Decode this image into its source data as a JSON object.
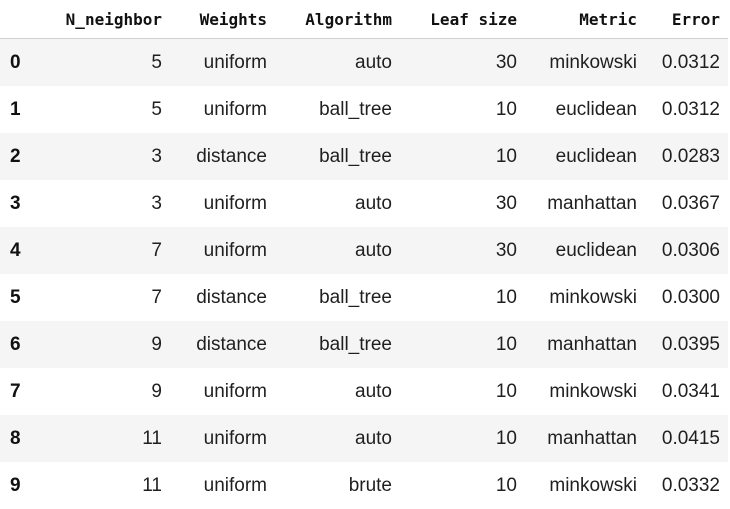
{
  "table": {
    "columns": [
      "",
      "N_neighbor",
      "Weights",
      "Algorithm",
      "Leaf size",
      "Metric",
      "Error"
    ],
    "rows": [
      {
        "index": "0",
        "cells": [
          "5",
          "uniform",
          "auto",
          "30",
          "minkowski",
          "0.0312"
        ]
      },
      {
        "index": "1",
        "cells": [
          "5",
          "uniform",
          "ball_tree",
          "10",
          "euclidean",
          "0.0312"
        ]
      },
      {
        "index": "2",
        "cells": [
          "3",
          "distance",
          "ball_tree",
          "10",
          "euclidean",
          "0.0283"
        ]
      },
      {
        "index": "3",
        "cells": [
          "3",
          "uniform",
          "auto",
          "30",
          "manhattan",
          "0.0367"
        ]
      },
      {
        "index": "4",
        "cells": [
          "7",
          "uniform",
          "auto",
          "30",
          "euclidean",
          "0.0306"
        ]
      },
      {
        "index": "5",
        "cells": [
          "7",
          "distance",
          "ball_tree",
          "10",
          "minkowski",
          "0.0300"
        ]
      },
      {
        "index": "6",
        "cells": [
          "9",
          "distance",
          "ball_tree",
          "10",
          "manhattan",
          "0.0395"
        ]
      },
      {
        "index": "7",
        "cells": [
          "9",
          "uniform",
          "auto",
          "10",
          "minkowski",
          "0.0341"
        ]
      },
      {
        "index": "8",
        "cells": [
          "11",
          "uniform",
          "auto",
          "10",
          "manhattan",
          "0.0415"
        ]
      },
      {
        "index": "9",
        "cells": [
          "11",
          "uniform",
          "brute",
          "10",
          "minkowski",
          "0.0332"
        ]
      }
    ]
  }
}
